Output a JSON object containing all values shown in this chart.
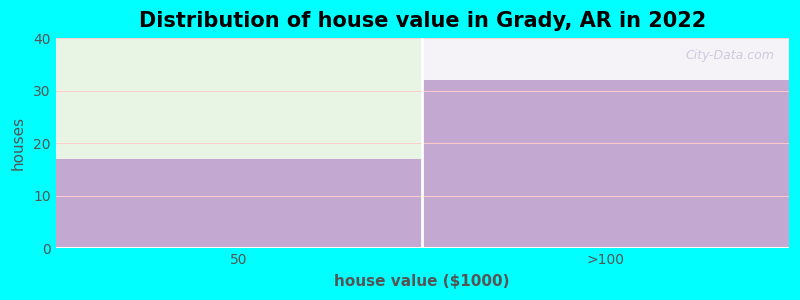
{
  "title": "Distribution of house value in Grady, AR in 2022",
  "xlabel": "house value ($1000)",
  "ylabel": "houses",
  "categories": [
    "50",
    ">100"
  ],
  "values": [
    17,
    32
  ],
  "bar_color": "#C3A8D1",
  "upper_color_left": "#e8f5e5",
  "upper_color_right": "#f5f3f8",
  "background_color": "#00FFFF",
  "plot_bg_color": "#ffffff",
  "ylim": [
    0,
    40
  ],
  "yticks": [
    0,
    10,
    20,
    30,
    40
  ],
  "title_fontsize": 15,
  "axis_label_fontsize": 11,
  "watermark": "City-Data.com",
  "grid_color": "#ffcccc",
  "separator_color": "#ffffff"
}
